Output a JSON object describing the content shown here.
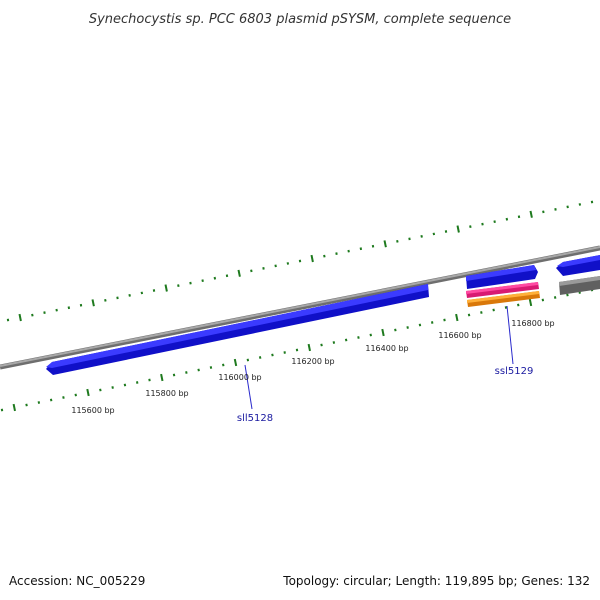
{
  "title": "Synechocystis sp. PCC 6803 plasmid pSYSM, complete sequence",
  "footer": {
    "accession": "Accession: NC_005229",
    "summary": "Topology: circular; Length: 119,895 bp; Genes: 132"
  },
  "ruler_labels": [
    "115600 bp",
    "115800 bp",
    "116000 bp",
    "116200 bp",
    "116400 bp",
    "116600 bp",
    "116800 bp"
  ],
  "genes": [
    {
      "name": "sll5128",
      "strand": "reverse",
      "color": "#1a1aff"
    },
    {
      "name": "ssl5129",
      "strand": "forward",
      "color": "#1a1aff"
    }
  ],
  "colors": {
    "backbone": "#8a8a8a",
    "tick": "#1e7a1e",
    "gene": "#1a1aff",
    "feature_pink": "#ff2d8c",
    "feature_orange": "#ff9a1a",
    "feature_gray": "#777777"
  }
}
